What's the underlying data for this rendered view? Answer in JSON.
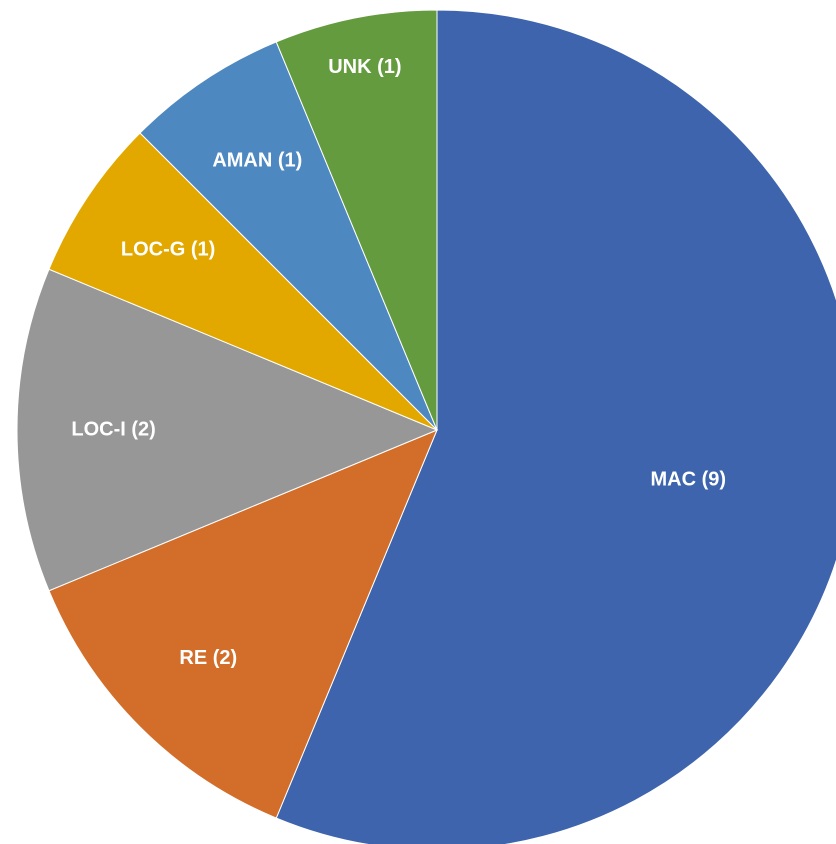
{
  "chart_data": {
    "type": "pie",
    "values": [
      9,
      2,
      2,
      1,
      1,
      1
    ],
    "value_labels": [
      "MAC (9)",
      "RE (2)",
      "LOC-I (2)",
      "LOC-G (1)",
      "AMAN (1)",
      "UNK (1)"
    ],
    "colors": [
      "#3d64ac",
      "#d26e2a",
      "#979797",
      "#e2a800",
      "#4e88c0",
      "#639b3e"
    ]
  }
}
